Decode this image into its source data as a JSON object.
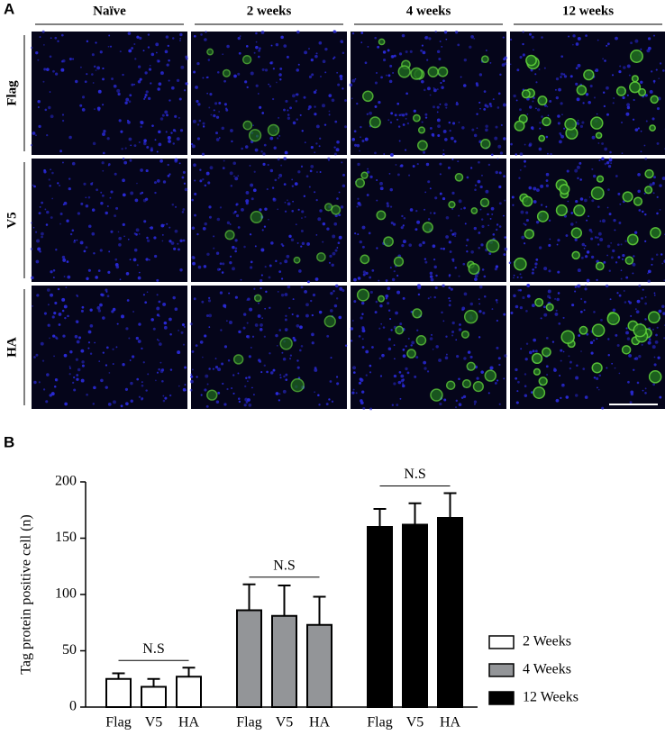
{
  "panel_a": {
    "label": "A",
    "columns": [
      "Naïve",
      "2 weeks",
      "4 weeks",
      "12 weeks"
    ],
    "rows": [
      "Flag",
      "V5",
      "HA"
    ]
  },
  "panel_b_label": "B",
  "chart_data": {
    "type": "bar",
    "ylabel": "Tag protein positive cell (n)",
    "categories": [
      "Flag",
      "V5",
      "HA"
    ],
    "series": [
      {
        "name": "2 Weeks",
        "color": "#ffffff",
        "values": [
          25,
          18,
          27
        ],
        "errors": [
          5,
          7,
          8
        ],
        "annotation": "N.S"
      },
      {
        "name": "4 Weeks",
        "color": "#939598",
        "values": [
          86,
          81,
          73
        ],
        "errors": [
          23,
          27,
          25
        ],
        "annotation": "N.S"
      },
      {
        "name": "12 Weeks",
        "color": "#000000",
        "values": [
          160,
          162,
          168
        ],
        "errors": [
          16,
          19,
          22
        ],
        "annotation": "N.S"
      }
    ],
    "ylim": [
      0,
      200
    ],
    "yticks": [
      0,
      50,
      100,
      150,
      200
    ],
    "legend": "right"
  }
}
